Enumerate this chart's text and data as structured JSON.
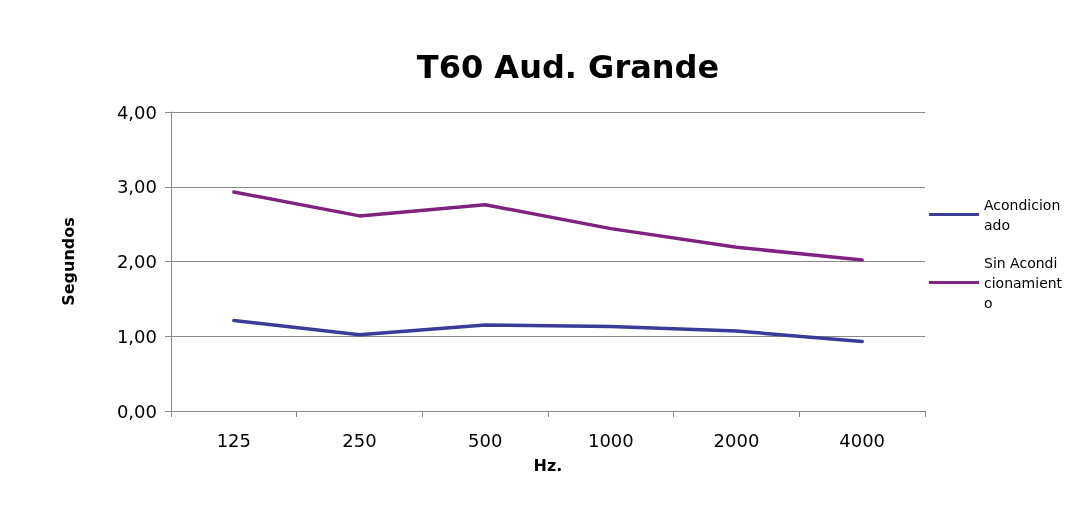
{
  "chart_data": {
    "type": "line",
    "title": "T60 Aud. Grande",
    "xlabel": "Hz.",
    "ylabel": "Segundos",
    "categories": [
      "125",
      "250",
      "500",
      "1000",
      "2000",
      "4000"
    ],
    "series": [
      {
        "name": "Acondicionado",
        "color": "#3b3b9a",
        "values": [
          1.21,
          1.02,
          1.15,
          1.13,
          1.07,
          0.93
        ]
      },
      {
        "name": "Sin Acondicionamiento",
        "color": "#80227f",
        "values": [
          2.93,
          2.61,
          2.76,
          2.44,
          2.19,
          2.02
        ]
      }
    ],
    "ylim": [
      0,
      4
    ],
    "yticks": [
      {
        "value": 0,
        "label": "0,00"
      },
      {
        "value": 1,
        "label": "1,00"
      },
      {
        "value": 2,
        "label": "2,00"
      },
      {
        "value": 3,
        "label": "3,00"
      },
      {
        "value": 4,
        "label": "4,00"
      }
    ],
    "grid": "y",
    "legend": "right",
    "marker": "none",
    "line_style": "solid"
  }
}
